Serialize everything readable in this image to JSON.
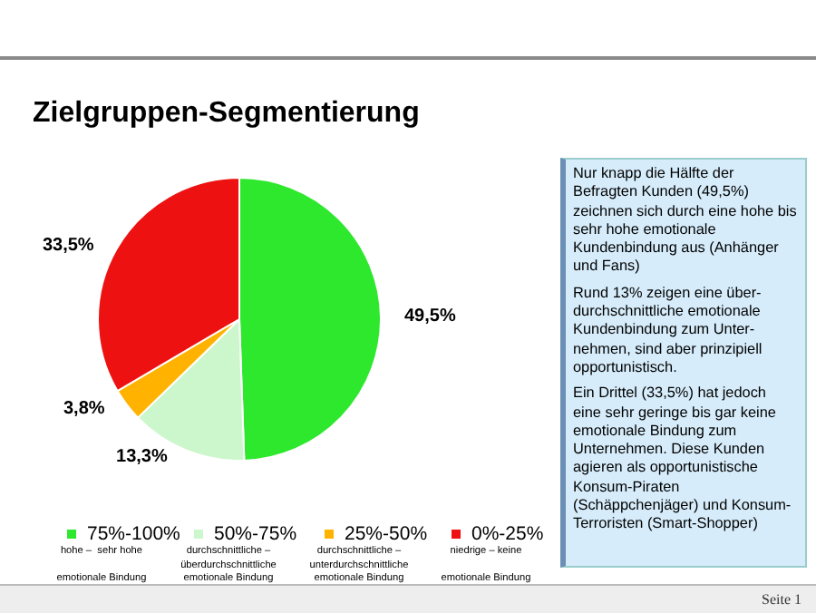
{
  "chart_data": {
    "type": "pie",
    "title": "Zielgruppen-Segmentierung",
    "categories": [
      "75%-100%",
      "50%-75%",
      "25%-50%",
      "0%-25%"
    ],
    "values": [
      49.5,
      13.3,
      3.8,
      33.5
    ],
    "colors": [
      "#2ee82e",
      "#ccf7cc",
      "#ffb300",
      "#ee1111"
    ],
    "value_labels": [
      "49,5%",
      "13,3%",
      "3,8%",
      "33,5%"
    ],
    "legend": "bottom",
    "annotations": [
      "hohe –  sehr hohe\n\nemotionale Bindung",
      "durchschnittliche –\nüberdurchschnittliche\nemotionale Bindung",
      "durchschnittliche –\nunterdurchschnittliche\nemotionale Bindung",
      "niedrige – keine\n\nemotionale Bindung",
      "Nur knapp die Hälfte der Befragten Kunden (49,5%) zeichnen sich durch eine hohe bis sehr hohe emotionale Kundenbindung aus (Anhänger und Fans)\nRund 13% zeigen eine über-durchschnittliche emotionale Kundenbindung zum Unter-nehmen, sind aber prinzipiell opportunistisch.\nEin Drittel (33,5%) hat jedoch eine sehr geringe bis gar keine emotionale Bindung zum Unternehmen. Diese Kunden agieren als opportunistische Konsum-Piraten (Schäppchenjäger) und Konsum-Terroristen (Smart-Shopper)",
      "Seite 1"
    ]
  }
}
